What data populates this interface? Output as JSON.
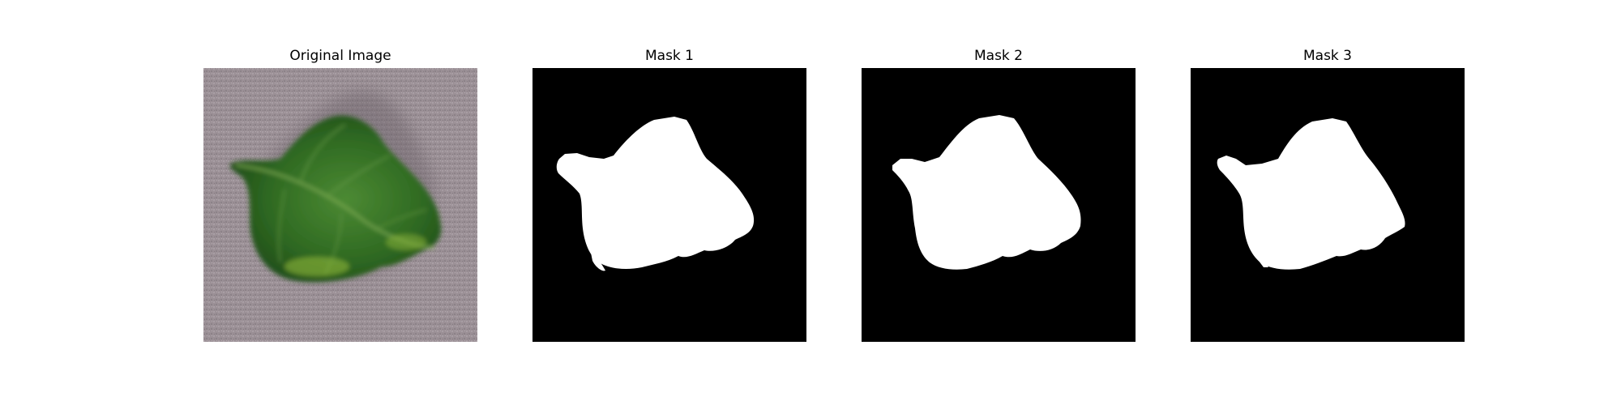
{
  "panels": [
    {
      "title": "Original Image"
    },
    {
      "title": "Mask 1"
    },
    {
      "title": "Mask 2"
    },
    {
      "title": "Mask 3"
    }
  ],
  "colors": {
    "background": "#ffffff",
    "mask_background": "#000000",
    "mask_foreground": "#ffffff",
    "leaf": "#3f7a2a",
    "carpet": "#9a8f96"
  }
}
